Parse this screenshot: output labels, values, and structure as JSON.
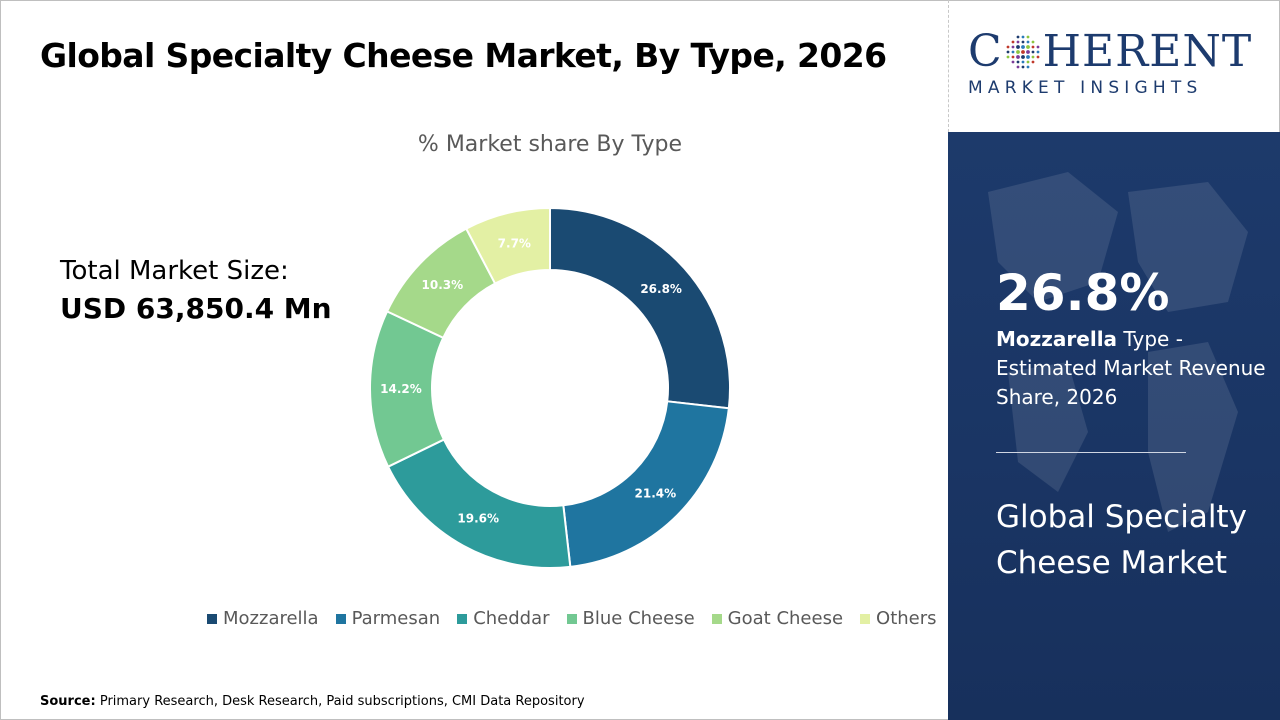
{
  "title": "Global Specialty Cheese Market, By Type, 2026",
  "market_size": {
    "label": "Total Market Size:",
    "value": "USD 63,850.4 Mn"
  },
  "source": {
    "label": "Source:",
    "text": "Primary Research, Desk Research, Paid subscriptions, CMI Data Repository"
  },
  "logo": {
    "main_left": "C",
    "main_right": "HERENT",
    "sub": "MARKET INSIGHTS"
  },
  "panel": {
    "highlight_value": "26.8%",
    "highlight_bold": "Mozzarella",
    "highlight_text": " Type - Estimated Market Revenue Share, 2026",
    "market_title": "Global Specialty Cheese Market"
  },
  "colors": {
    "panel_bg": "#1b3768",
    "brand": "#1d3b6e"
  },
  "chart_data": {
    "type": "pie",
    "title": "% Market share By Type",
    "donut": true,
    "legend_position": "bottom",
    "categories": [
      "Mozzarella",
      "Parmesan",
      "Cheddar",
      "Blue Cheese",
      "Goat Cheese",
      "Others"
    ],
    "values": [
      26.8,
      21.4,
      19.6,
      14.2,
      10.3,
      7.7
    ],
    "labels": [
      "26.8%",
      "21.4%",
      "19.6%",
      "14.2%",
      "10.3%",
      "7.7%"
    ],
    "colors": [
      "#1a4a72",
      "#1f75a0",
      "#2d9b9b",
      "#72c892",
      "#a5d98a",
      "#e3f0a4"
    ],
    "label_colors": [
      "#ffffff",
      "#ffffff",
      "#ffffff",
      "#ffffff",
      "#ffffff",
      "#ffffff"
    ]
  }
}
